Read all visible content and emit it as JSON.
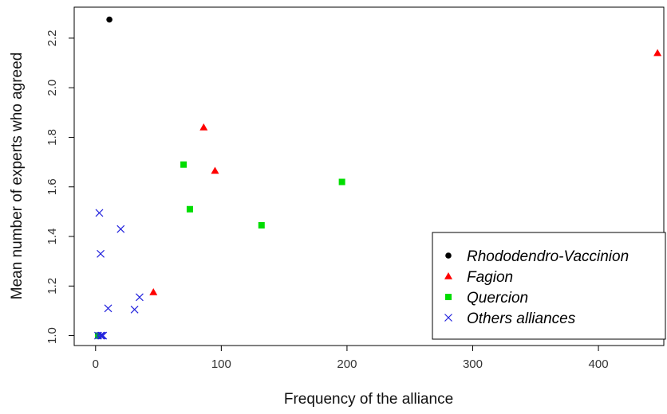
{
  "chart_data": {
    "type": "scatter",
    "title": "",
    "xlabel": "Frequency of the alliance",
    "ylabel": "Mean number of experts who agreed",
    "xlim": [
      -17,
      452
    ],
    "ylim": [
      0.96,
      2.325
    ],
    "xticks": [
      0,
      100,
      200,
      300,
      400
    ],
    "yticks": [
      1.0,
      1.2,
      1.4,
      1.6,
      1.8,
      2.0,
      2.2
    ],
    "ytick_labels": [
      "1.0",
      "1.2",
      "1.4",
      "1.6",
      "1.8",
      "2.0",
      "2.2"
    ],
    "grid": false,
    "legend_position": "bottom-right",
    "series": [
      {
        "name": "Rhododendro-Vaccinion",
        "marker": "circle",
        "color": "#000000",
        "points": [
          [
            11,
            2.275
          ]
        ]
      },
      {
        "name": "Fagion",
        "marker": "triangle",
        "color": "#ff0000",
        "points": [
          [
            447,
            2.14
          ],
          [
            86,
            1.84
          ],
          [
            95,
            1.665
          ],
          [
            46,
            1.175
          ]
        ]
      },
      {
        "name": "Quercion",
        "marker": "square",
        "color": "#00dd00",
        "points": [
          [
            70,
            1.69
          ],
          [
            75,
            1.51
          ],
          [
            132,
            1.445
          ],
          [
            196,
            1.62
          ],
          [
            2,
            1.0
          ]
        ]
      },
      {
        "name": "Others alliances",
        "marker": "cross",
        "color": "#2222dd",
        "points": [
          [
            3,
            1.495
          ],
          [
            4,
            1.33
          ],
          [
            20,
            1.43
          ],
          [
            10,
            1.11
          ],
          [
            31,
            1.105
          ],
          [
            35,
            1.155
          ],
          [
            2,
            1.0
          ],
          [
            4,
            1.0
          ],
          [
            5,
            1.0
          ],
          [
            6,
            1.0
          ]
        ]
      }
    ]
  }
}
